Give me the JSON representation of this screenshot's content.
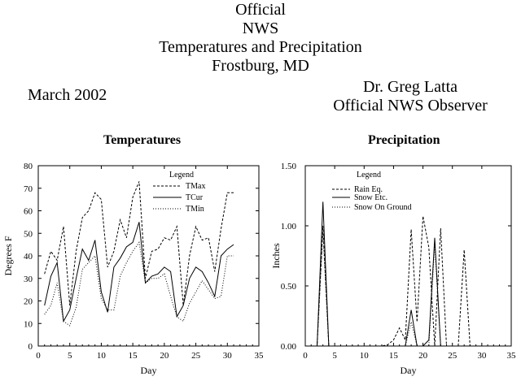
{
  "header": {
    "title_lines": [
      "Official",
      "NWS",
      "Temperatures and Precipitation",
      "Frostburg, MD"
    ],
    "month": "March 2002",
    "observer_lines": [
      "Dr. Greg Latta",
      "Official NWS Observer"
    ]
  },
  "chart_data": [
    {
      "type": "line",
      "title": "Temperatures",
      "xlabel": "Day",
      "ylabel": "Degrees F",
      "xlim": [
        0,
        35
      ],
      "ylim": [
        0,
        80
      ],
      "xticks": [
        0,
        5,
        10,
        15,
        20,
        25,
        30,
        35
      ],
      "yticks": [
        0,
        10,
        20,
        30,
        40,
        50,
        60,
        70,
        80
      ],
      "grid": false,
      "legend": {
        "title": "Legend",
        "position": "top-right"
      },
      "x": [
        1,
        2,
        3,
        4,
        5,
        6,
        7,
        8,
        9,
        10,
        11,
        12,
        13,
        14,
        15,
        16,
        17,
        18,
        19,
        20,
        21,
        22,
        23,
        24,
        25,
        26,
        27,
        28,
        29,
        30,
        31
      ],
      "series": [
        {
          "name": "TMax",
          "style": "dashed",
          "values": [
            32,
            42,
            38,
            53,
            18,
            42,
            57,
            60,
            68,
            65,
            35,
            42,
            56,
            48,
            66,
            73,
            30,
            42,
            43,
            48,
            47,
            53,
            18,
            40,
            53,
            47,
            48,
            33,
            52,
            68,
            68
          ]
        },
        {
          "name": "TCur",
          "style": "solid",
          "values": [
            18,
            31,
            37,
            11,
            16,
            30,
            43,
            38,
            47,
            24,
            15,
            35,
            39,
            44,
            46,
            55,
            28,
            31,
            32,
            35,
            33,
            13,
            18,
            30,
            35,
            33,
            28,
            22,
            40,
            43,
            45
          ]
        },
        {
          "name": "TMin",
          "style": "dotted",
          "values": [
            14,
            18,
            28,
            11,
            9,
            17,
            34,
            37,
            40,
            21,
            16,
            16,
            31,
            37,
            42,
            46,
            28,
            30,
            30,
            32,
            22,
            13,
            11,
            19,
            24,
            29,
            25,
            21,
            22,
            40,
            40
          ]
        }
      ]
    },
    {
      "type": "line",
      "title": "Precipitation",
      "xlabel": "Day",
      "ylabel": "Inches",
      "xlim": [
        0,
        35
      ],
      "ylim": [
        0,
        1.5
      ],
      "xticks": [
        0,
        5,
        10,
        15,
        20,
        25,
        30,
        35
      ],
      "yticks": [
        0.0,
        0.5,
        1.0,
        1.5
      ],
      "ytick_labels": [
        "0.00",
        "0.50",
        "1.00",
        "1.50"
      ],
      "grid": false,
      "legend": {
        "title": "Legend",
        "position": "top-center"
      },
      "x": [
        1,
        2,
        3,
        4,
        5,
        6,
        7,
        8,
        9,
        10,
        11,
        12,
        13,
        14,
        15,
        16,
        17,
        18,
        19,
        20,
        21,
        22,
        23,
        24,
        25,
        26,
        27,
        28,
        29,
        30,
        31
      ],
      "series": [
        {
          "name": "Rain Eq.",
          "style": "dashed",
          "values": [
            0,
            0,
            1.0,
            0,
            0,
            0,
            0,
            0,
            0,
            0,
            0,
            0,
            0,
            0.01,
            0.05,
            0.15,
            0.05,
            0.97,
            0.2,
            1.08,
            0.82,
            0,
            0.98,
            0,
            0,
            0,
            0.8,
            0,
            0,
            0,
            0
          ]
        },
        {
          "name": "Snow Etc.",
          "style": "solid",
          "values": [
            0,
            0,
            1.2,
            0,
            0,
            0,
            0,
            0,
            0,
            0,
            0,
            0,
            0,
            0,
            0,
            0,
            0,
            0.3,
            0,
            0,
            0.05,
            0.9,
            0,
            0,
            0,
            0,
            0,
            0,
            0,
            0,
            0
          ]
        },
        {
          "name": "Snow On Ground",
          "style": "dotted",
          "values": [
            0,
            0,
            0.95,
            0,
            0,
            0,
            0,
            0,
            0,
            0,
            0,
            0,
            0,
            0,
            0,
            0,
            0,
            0.2,
            0,
            0,
            0,
            0.85,
            0,
            0,
            0,
            0,
            0,
            0,
            0,
            0,
            0
          ]
        }
      ]
    }
  ]
}
